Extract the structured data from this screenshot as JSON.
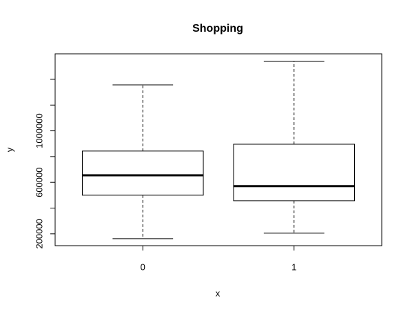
{
  "chart_data": {
    "type": "boxplot",
    "title": "Shopping",
    "x_label": "x",
    "y_label": "y",
    "categories": [
      "0",
      "1"
    ],
    "min": [
      162500,
      205000
    ],
    "q1": [
      500000,
      457000
    ],
    "median": [
      655000,
      570000
    ],
    "q3": [
      843000,
      896000
    ],
    "max": [
      1357000,
      1539000
    ],
    "ylim": [
      108000,
      1598000
    ],
    "yticks": [
      200000,
      600000,
      1000000
    ],
    "yticks_unlabeled": [
      400000,
      800000,
      1200000,
      1400000
    ],
    "color": "#000000"
  }
}
